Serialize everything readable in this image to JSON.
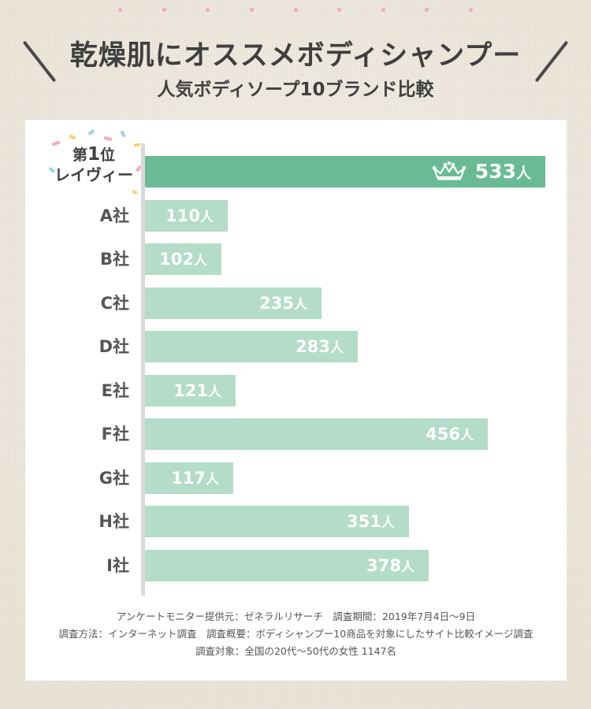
{
  "header": {
    "title": "乾燥肌にオススメボディシャンプー",
    "subtitle": "人気ボディソープ10ブランド比較"
  },
  "winner": {
    "rank_prefix": "第",
    "rank_number": "1",
    "rank_suffix": "位",
    "name": "レイヴィー"
  },
  "chart_data": {
    "type": "bar",
    "orientation": "horizontal",
    "title": "人気ボディソープ10ブランド比較",
    "unit": "人",
    "categories": [
      "レイヴィー",
      "A社",
      "B社",
      "C社",
      "D社",
      "E社",
      "F社",
      "G社",
      "H社",
      "I社"
    ],
    "values": [
      533,
      110,
      102,
      235,
      283,
      121,
      456,
      117,
      351,
      378
    ],
    "value_labels": [
      "533",
      "110",
      "102",
      "235",
      "283",
      "121",
      "456",
      "117",
      "351",
      "378"
    ],
    "highlight_index": 0,
    "xlim": [
      0,
      533
    ],
    "grid": false,
    "colors": {
      "highlight": "#68bb95",
      "normal": "#b3dcc9"
    }
  },
  "notes": {
    "line1": "アンケートモニター提供元：ゼネラルリサーチ　調査期間：2019年7月4日〜9日",
    "line2": "調査方法：インターネット調査　調査概要：ボディシャンプー10商品を対象にしたサイト比較イメージ調査",
    "line3": "調査対象：全国の20代〜50代の女性 1147名"
  },
  "icons": {
    "crown": "crown-icon"
  }
}
